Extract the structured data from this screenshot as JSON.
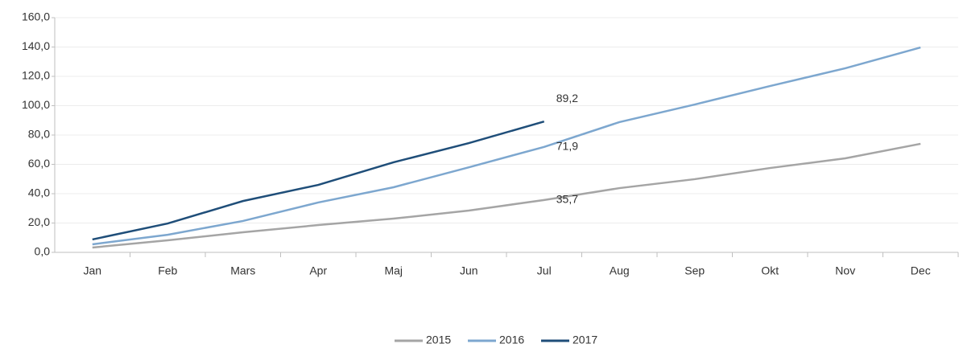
{
  "chart_data": {
    "type": "line",
    "categories": [
      "Jan",
      "Feb",
      "Mars",
      "Apr",
      "Maj",
      "Jun",
      "Jul",
      "Aug",
      "Sep",
      "Okt",
      "Nov",
      "Dec"
    ],
    "series": [
      {
        "name": "2015",
        "color": "#a5a5a5",
        "values": [
          3.3,
          8.2,
          13.7,
          18.6,
          23.0,
          28.5,
          35.7,
          43.8,
          49.9,
          57.5,
          64.1,
          74.0
        ],
        "value_labels": [
          null,
          null,
          null,
          null,
          null,
          null,
          "35,7",
          null,
          null,
          null,
          null,
          null
        ]
      },
      {
        "name": "2016",
        "color": "#7da7cf",
        "values": [
          5.5,
          12.0,
          21.4,
          34.0,
          44.4,
          58.0,
          71.9,
          88.8,
          100.8,
          113.4,
          125.5,
          139.7
        ],
        "value_labels": [
          null,
          null,
          null,
          null,
          null,
          null,
          "71,9",
          null,
          null,
          null,
          null,
          null
        ]
      },
      {
        "name": "2017",
        "color": "#1f4e79",
        "values": [
          8.8,
          19.7,
          35.0,
          46.0,
          61.4,
          74.5,
          89.2,
          null,
          null,
          null,
          null,
          null
        ],
        "value_labels": [
          null,
          null,
          null,
          null,
          null,
          null,
          "89,2",
          null,
          null,
          null,
          null,
          null
        ]
      }
    ],
    "ylim": [
      0,
      160
    ],
    "yticks": [
      {
        "value": 0,
        "label": "0,0"
      },
      {
        "value": 20,
        "label": "20,0"
      },
      {
        "value": 40,
        "label": "40,0"
      },
      {
        "value": 60,
        "label": "60,0"
      },
      {
        "value": 80,
        "label": "80,0"
      },
      {
        "value": 100,
        "label": "100,0"
      },
      {
        "value": 120,
        "label": "120,0"
      },
      {
        "value": 140,
        "label": "140,0"
      },
      {
        "value": 160,
        "label": "160,0"
      }
    ],
    "grid": true,
    "legend": "bottom"
  }
}
